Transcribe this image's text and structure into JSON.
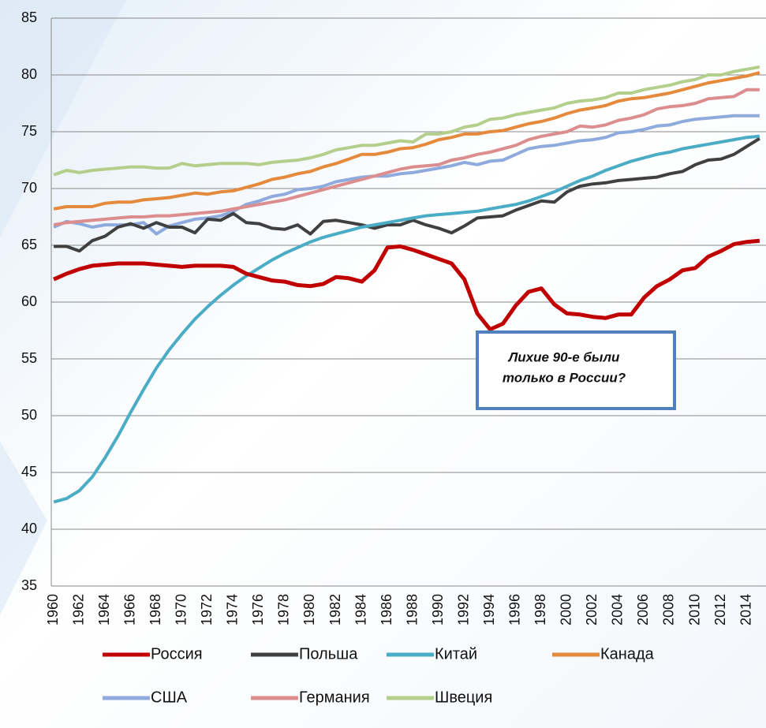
{
  "chart_data": {
    "type": "line",
    "categories": [
      "1960",
      null,
      "1962",
      null,
      "1964",
      null,
      "1966",
      null,
      "1968",
      null,
      "1970",
      null,
      "1972",
      null,
      "1974",
      null,
      "1976",
      null,
      "1978",
      null,
      "1980",
      null,
      "1982",
      null,
      "1984",
      null,
      "1986",
      null,
      "1988",
      null,
      "1990",
      null,
      "1992",
      null,
      "1994",
      null,
      "1996",
      null,
      "1998",
      null,
      "2000",
      null,
      "2002",
      null,
      "2004",
      null,
      "2006",
      null,
      "2008",
      null,
      "2010",
      null,
      "2012",
      null,
      "2014",
      null
    ],
    "ylim": [
      35,
      85
    ],
    "yticks": [
      35,
      40,
      45,
      50,
      55,
      60,
      65,
      70,
      75,
      80,
      85
    ],
    "grid": true,
    "annotation": [
      "Лихие 90-е были",
      "только в России?"
    ],
    "series": [
      {
        "name": "Россия",
        "color": "#c00000",
        "values": [
          62.0,
          62.5,
          62.9,
          63.2,
          63.3,
          63.4,
          63.4,
          63.4,
          63.3,
          63.2,
          63.1,
          63.2,
          63.2,
          63.2,
          63.1,
          62.5,
          62.2,
          61.9,
          61.8,
          61.5,
          61.4,
          61.6,
          62.2,
          62.1,
          61.8,
          62.8,
          64.8,
          64.9,
          64.6,
          64.2,
          63.8,
          63.4,
          62.0,
          59.0,
          57.6,
          58.1,
          59.7,
          60.9,
          61.2,
          59.8,
          59.0,
          58.9,
          58.7,
          58.6,
          58.9,
          58.9,
          60.4,
          61.4,
          62.0,
          62.8,
          63.0,
          64.0,
          64.5,
          65.1,
          65.3,
          65.4
        ]
      },
      {
        "name": "Польша",
        "color": "#404040",
        "values": [
          64.9,
          64.9,
          64.5,
          65.4,
          65.8,
          66.6,
          66.9,
          66.5,
          67.0,
          66.6,
          66.6,
          66.1,
          67.3,
          67.2,
          67.8,
          67.0,
          66.9,
          66.5,
          66.4,
          66.8,
          66.0,
          67.1,
          67.2,
          67.0,
          66.8,
          66.5,
          66.8,
          66.8,
          67.2,
          66.8,
          66.5,
          66.1,
          66.7,
          67.4,
          67.5,
          67.6,
          68.1,
          68.5,
          68.9,
          68.8,
          69.7,
          70.2,
          70.4,
          70.5,
          70.7,
          70.8,
          70.9,
          71.0,
          71.3,
          71.5,
          72.1,
          72.5,
          72.6,
          73.0,
          73.7,
          74.4
        ]
      },
      {
        "name": "Китай",
        "color": "#4bacc6",
        "values": [
          42.4,
          42.7,
          43.4,
          44.6,
          46.3,
          48.2,
          50.3,
          52.3,
          54.2,
          55.8,
          57.2,
          58.5,
          59.6,
          60.6,
          61.5,
          62.3,
          63.0,
          63.7,
          64.3,
          64.8,
          65.3,
          65.7,
          66.0,
          66.3,
          66.6,
          66.8,
          67.0,
          67.2,
          67.4,
          67.6,
          67.7,
          67.8,
          67.9,
          68.0,
          68.2,
          68.4,
          68.6,
          68.9,
          69.3,
          69.7,
          70.2,
          70.7,
          71.1,
          71.6,
          72.0,
          72.4,
          72.7,
          73.0,
          73.2,
          73.5,
          73.7,
          73.9,
          74.1,
          74.3,
          74.5,
          74.6
        ]
      },
      {
        "name": "Канада",
        "color": "#e58a3c",
        "values": [
          68.2,
          68.4,
          68.4,
          68.4,
          68.7,
          68.8,
          68.8,
          69.0,
          69.1,
          69.2,
          69.4,
          69.6,
          69.5,
          69.7,
          69.8,
          70.1,
          70.4,
          70.8,
          71.0,
          71.3,
          71.5,
          71.9,
          72.2,
          72.6,
          73.0,
          73.0,
          73.2,
          73.5,
          73.6,
          73.9,
          74.3,
          74.5,
          74.8,
          74.8,
          75.0,
          75.1,
          75.4,
          75.7,
          75.9,
          76.2,
          76.6,
          76.9,
          77.1,
          77.3,
          77.7,
          77.9,
          78.0,
          78.2,
          78.4,
          78.7,
          79.0,
          79.3,
          79.5,
          79.7,
          79.9,
          80.2
        ]
      },
      {
        "name": "США",
        "color": "#8faadc",
        "values": [
          66.6,
          67.1,
          66.9,
          66.6,
          66.8,
          66.8,
          66.8,
          67.0,
          66.0,
          66.7,
          67.0,
          67.3,
          67.4,
          67.6,
          68.0,
          68.6,
          68.9,
          69.3,
          69.5,
          69.9,
          70.0,
          70.2,
          70.6,
          70.8,
          71.0,
          71.1,
          71.1,
          71.3,
          71.4,
          71.6,
          71.8,
          72.0,
          72.3,
          72.1,
          72.4,
          72.5,
          73.0,
          73.5,
          73.7,
          73.8,
          74.0,
          74.2,
          74.3,
          74.5,
          74.9,
          75.0,
          75.2,
          75.5,
          75.6,
          75.9,
          76.1,
          76.2,
          76.3,
          76.4,
          76.4,
          76.4
        ]
      },
      {
        "name": "Германия",
        "color": "#dc8e8e",
        "values": [
          66.8,
          67.0,
          67.1,
          67.2,
          67.3,
          67.4,
          67.5,
          67.5,
          67.6,
          67.6,
          67.7,
          67.8,
          67.9,
          68.0,
          68.2,
          68.4,
          68.6,
          68.8,
          69.0,
          69.3,
          69.6,
          69.9,
          70.2,
          70.5,
          70.8,
          71.1,
          71.4,
          71.7,
          71.9,
          72.0,
          72.1,
          72.5,
          72.7,
          73.0,
          73.2,
          73.5,
          73.8,
          74.3,
          74.6,
          74.8,
          75.0,
          75.5,
          75.4,
          75.6,
          76.0,
          76.2,
          76.5,
          77.0,
          77.2,
          77.3,
          77.5,
          77.9,
          78.0,
          78.1,
          78.7,
          78.7
        ]
      },
      {
        "name": "Швеция",
        "color": "#b3cf8b",
        "values": [
          71.2,
          71.6,
          71.4,
          71.6,
          71.7,
          71.8,
          71.9,
          71.9,
          71.8,
          71.8,
          72.2,
          72.0,
          72.1,
          72.2,
          72.2,
          72.2,
          72.1,
          72.3,
          72.4,
          72.5,
          72.7,
          73.0,
          73.4,
          73.6,
          73.8,
          73.8,
          74.0,
          74.2,
          74.1,
          74.8,
          74.8,
          75.0,
          75.4,
          75.6,
          76.1,
          76.2,
          76.5,
          76.7,
          76.9,
          77.1,
          77.5,
          77.7,
          77.8,
          78.0,
          78.4,
          78.4,
          78.7,
          78.9,
          79.1,
          79.4,
          79.6,
          80.0,
          80.0,
          80.3,
          80.5,
          80.7
        ]
      }
    ]
  }
}
